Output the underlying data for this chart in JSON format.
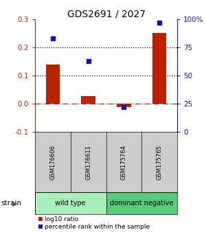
{
  "title": "GDS2691 / 2027",
  "samples": [
    "GSM176606",
    "GSM176611",
    "GSM175764",
    "GSM175765"
  ],
  "log10_ratio": [
    0.14,
    0.028,
    -0.012,
    0.253
  ],
  "percentile_rank": [
    83,
    63,
    22,
    97
  ],
  "ylim_left": [
    -0.1,
    0.3
  ],
  "ylim_right": [
    0,
    100
  ],
  "yticks_left": [
    -0.1,
    0.0,
    0.1,
    0.2,
    0.3
  ],
  "yticks_right": [
    0,
    25,
    50,
    75,
    100
  ],
  "ytick_labels_right": [
    "0",
    "25",
    "50",
    "75",
    "100%"
  ],
  "bar_color": "#bb2200",
  "dot_color": "#1111cc",
  "hline_color": "#bb2200",
  "dotline1": 0.1,
  "dotline2": 0.2,
  "groups": [
    {
      "label": "wild type",
      "samples": [
        0,
        1
      ],
      "color": "#aaeebb"
    },
    {
      "label": "dominant negative",
      "samples": [
        2,
        3
      ],
      "color": "#55cc77"
    }
  ],
  "strain_label": "strain",
  "legend_bar_label": "log10 ratio",
  "legend_dot_label": "percentile rank within the sample",
  "background_plot": "#ffffff",
  "background_sample_row": "#cccccc",
  "title_fontsize": 10,
  "tick_fontsize": 7.5,
  "sample_fontsize": 6,
  "group_fontsize": 7,
  "legend_fontsize": 6.5
}
